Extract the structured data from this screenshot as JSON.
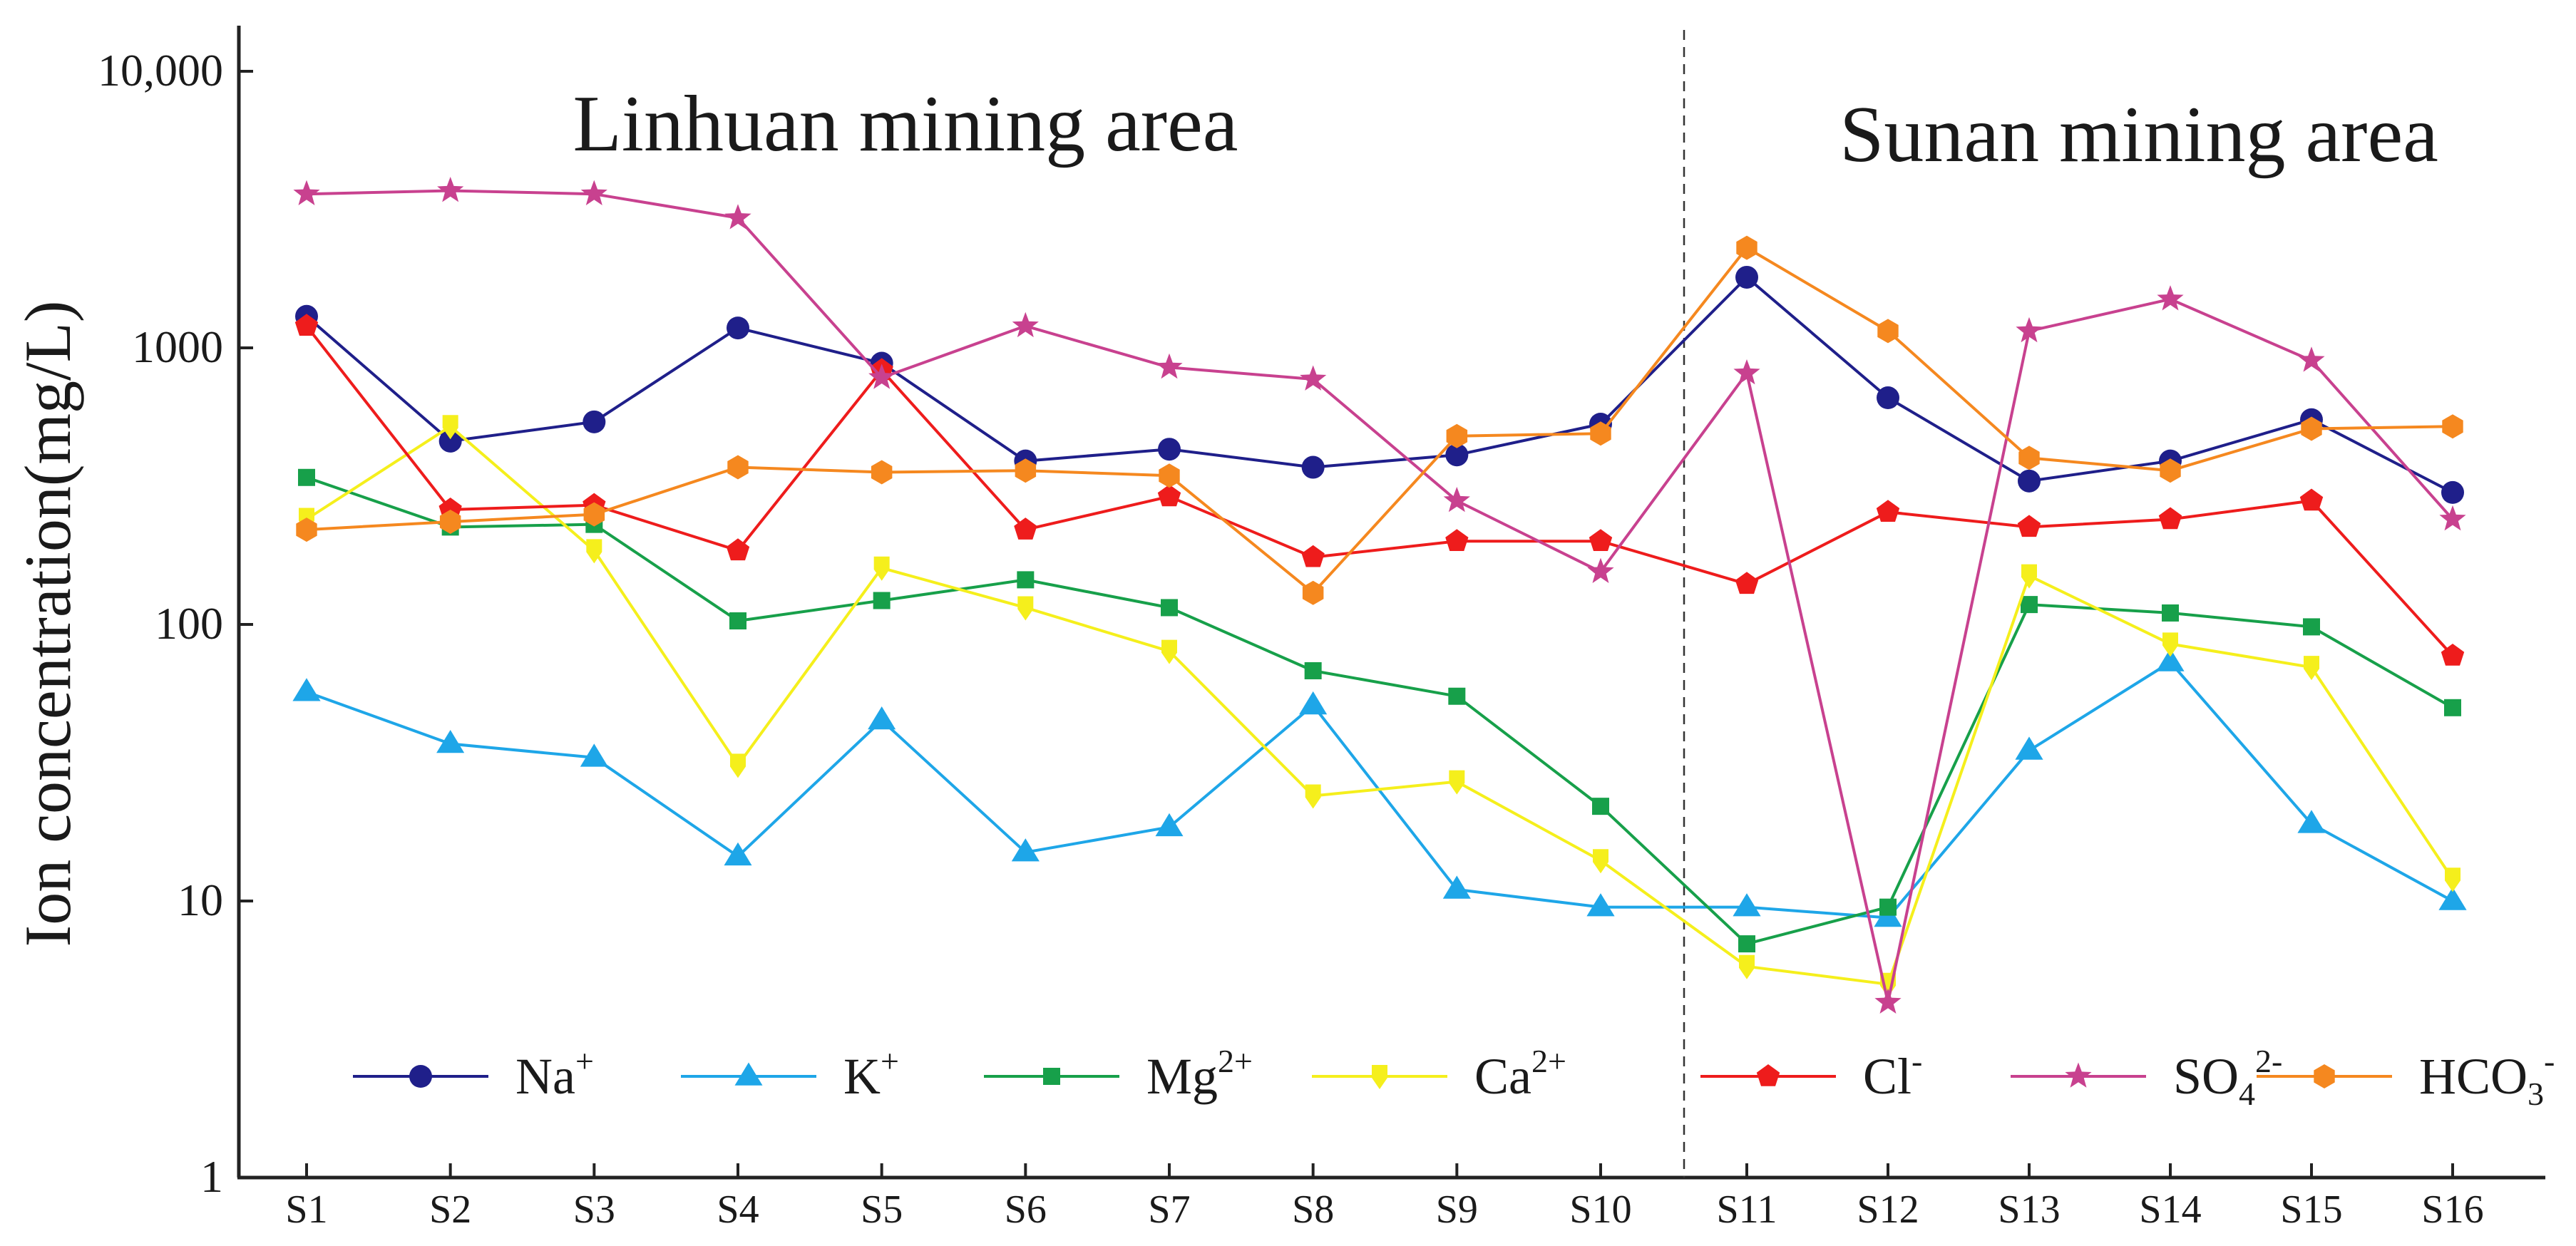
{
  "chart_data": {
    "type": "line",
    "yscale": "log",
    "ylim": [
      1,
      10000
    ],
    "ylabel": "Ion concentration(mg/L)",
    "yticks": [
      {
        "value": 1,
        "label": "1"
      },
      {
        "value": 10,
        "label": "10"
      },
      {
        "value": 100,
        "label": "100"
      },
      {
        "value": 1000,
        "label": "1000"
      },
      {
        "value": 10000,
        "label": "10,000"
      }
    ],
    "categories": [
      "S1",
      "S2",
      "S3",
      "S4",
      "S5",
      "S6",
      "S7",
      "S8",
      "S9",
      "S10",
      "S11",
      "S12",
      "S13",
      "S14",
      "S15",
      "S16"
    ],
    "groups": [
      {
        "title": "Linhuan mining area",
        "range": [
          0,
          9
        ]
      },
      {
        "title": "Sunan mining area",
        "range": [
          10,
          15
        ]
      }
    ],
    "legend_placement": "bottom",
    "series": [
      {
        "name": "Na",
        "sup": "+",
        "sub": "",
        "color": "#1f1f8a",
        "marker": "circle",
        "values": [
          1300,
          460,
          540,
          1180,
          880,
          390,
          430,
          370,
          410,
          530,
          1800,
          660,
          330,
          390,
          550,
          300
        ]
      },
      {
        "name": "K",
        "sup": "+",
        "sub": "",
        "color": "#1ea6e8",
        "marker": "triangle",
        "values": [
          57,
          37,
          33,
          14.5,
          45,
          15,
          18.5,
          51,
          11,
          9.5,
          9.5,
          8.7,
          35,
          73,
          19,
          10
        ]
      },
      {
        "name": "Mg",
        "sup": "2+",
        "sub": "",
        "color": "#17a04a",
        "marker": "square",
        "values": [
          340,
          225,
          230,
          103,
          122,
          145,
          115,
          68,
          55,
          22,
          7,
          9.5,
          118,
          110,
          98,
          50
        ]
      },
      {
        "name": "Ca",
        "sup": "2+",
        "sub": "",
        "color": "#f5ef1c",
        "marker": "pin",
        "values": [
          240,
          520,
          185,
          31,
          160,
          115,
          80,
          24,
          27,
          14,
          5.8,
          5,
          150,
          85,
          70,
          12
        ]
      },
      {
        "name": "Cl",
        "sup": "-",
        "sub": "",
        "color": "#ee1c1c",
        "marker": "pentagon",
        "values": [
          1200,
          260,
          270,
          185,
          830,
          220,
          290,
          175,
          200,
          200,
          140,
          255,
          225,
          240,
          280,
          77
        ]
      },
      {
        "name": "SO",
        "sup": "2-",
        "sub": "4",
        "color": "#c8418f",
        "marker": "star",
        "values": [
          3600,
          3700,
          3600,
          2950,
          780,
          1200,
          850,
          770,
          280,
          155,
          810,
          4.3,
          1150,
          1500,
          900,
          240
        ]
      },
      {
        "name": "HCO",
        "sup": "-",
        "sub": "3",
        "color": "#f5881f",
        "marker": "hexagon",
        "values": [
          220,
          235,
          250,
          370,
          355,
          360,
          345,
          130,
          480,
          490,
          2300,
          1150,
          400,
          360,
          510,
          520
        ]
      }
    ]
  }
}
